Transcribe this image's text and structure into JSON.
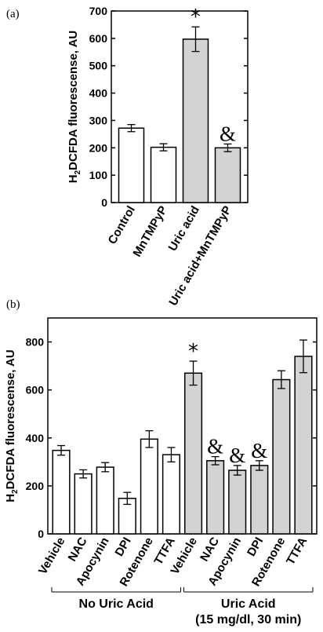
{
  "colors": {
    "white_bar": "#ffffff",
    "gray_bar": "#d3d3d3",
    "ink": "#000000"
  },
  "chart_data": [
    {
      "panel_label": "(a)",
      "type": "bar",
      "ylabel_prefix": "H",
      "ylabel_sub": "2",
      "ylabel_rest": "DCFDA fluorescense, AU",
      "ylim": [
        0,
        700
      ],
      "yticks": [
        0,
        100,
        200,
        300,
        400,
        500,
        600,
        700
      ],
      "grid": false,
      "categories": [
        "Control",
        "MnTMPyP",
        "Uric acid",
        "Uric acid+MnTMPyP"
      ],
      "values": [
        272,
        202,
        597,
        200
      ],
      "errors": [
        13,
        13,
        45,
        14
      ],
      "fills": [
        "white",
        "white",
        "gray",
        "gray"
      ],
      "annotations": [
        "",
        "",
        "*",
        "&"
      ]
    },
    {
      "panel_label": "(b)",
      "type": "bar",
      "ylabel_prefix": "H",
      "ylabel_sub": "2",
      "ylabel_rest": "DCFDA fluorescense, AU",
      "ylim": [
        0,
        900
      ],
      "yticks": [
        0,
        200,
        400,
        600,
        800
      ],
      "grid": false,
      "categories": [
        "Vehicle",
        "NAC",
        "Apocynin",
        "DPI",
        "Rotenone",
        "TTFA",
        "Vehicle",
        "NAC",
        "Apocynin",
        "DPI",
        "Rotenone",
        "TTFA"
      ],
      "values": [
        348,
        250,
        278,
        148,
        395,
        330,
        670,
        305,
        265,
        285,
        643,
        740
      ],
      "errors": [
        20,
        17,
        19,
        25,
        35,
        30,
        50,
        17,
        20,
        20,
        37,
        68
      ],
      "fills": [
        "white",
        "white",
        "white",
        "white",
        "white",
        "white",
        "gray",
        "gray",
        "gray",
        "gray",
        "gray",
        "gray"
      ],
      "annotations": [
        "",
        "",
        "",
        "",
        "",
        "",
        "*",
        "&",
        "&",
        "&",
        "",
        ""
      ],
      "groups": [
        {
          "label": "No Uric Acid",
          "sublabel": "",
          "start": 0,
          "end": 5
        },
        {
          "label": "Uric Acid",
          "sublabel": "(15 mg/dl, 30 min)",
          "start": 6,
          "end": 11
        }
      ]
    }
  ]
}
